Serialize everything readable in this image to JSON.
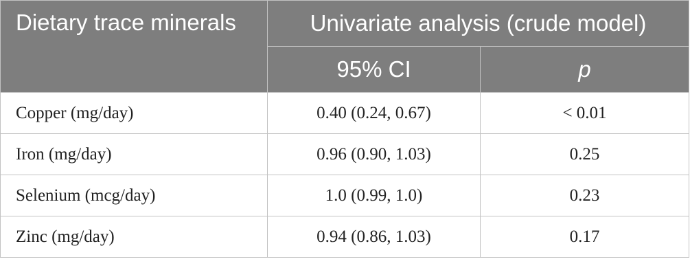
{
  "header": {
    "col1": "Dietary trace minerals",
    "group": "Univariate analysis (crude model)",
    "sub_ci": "95% CI",
    "sub_p": "p"
  },
  "rows": [
    {
      "mineral": "Copper (mg/day)",
      "ci": "0.40 (0.24, 0.67)",
      "p": "< 0.01"
    },
    {
      "mineral": "Iron (mg/day)",
      "ci": "0.96 (0.90, 1.03)",
      "p": "0.25"
    },
    {
      "mineral": "Selenium (mcg/day)",
      "ci": "1.0 (0.99, 1.0)",
      "p": "0.23"
    },
    {
      "mineral": "Zinc (mg/day)",
      "ci": "0.94 (0.86, 1.03)",
      "p": "0.17"
    }
  ],
  "colors": {
    "header_bg": "#7e7e7e",
    "header_text": "#ffffff",
    "border": "#c2c2c2"
  }
}
